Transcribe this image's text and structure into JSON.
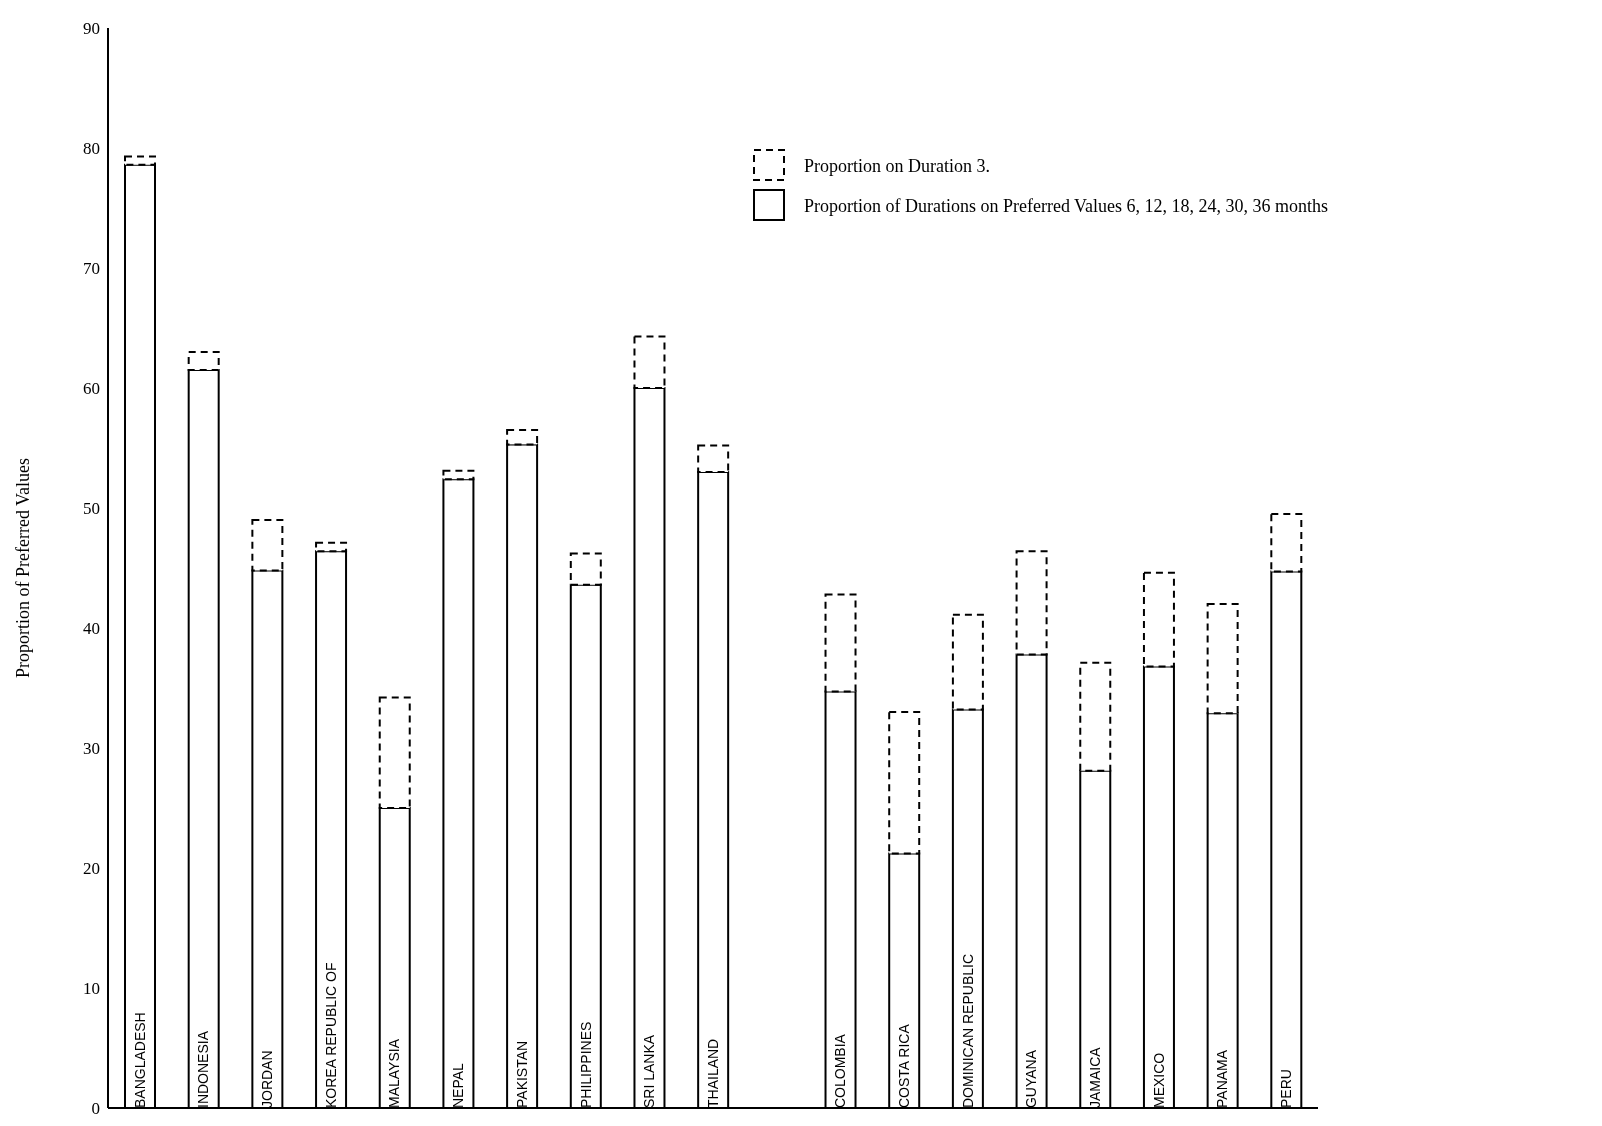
{
  "chart_data": {
    "type": "bar",
    "stacked": true,
    "ylabel": "Proportion of Preferred Values",
    "categories": [
      "BANGLADESH",
      "INDONESIA",
      "JORDAN",
      "KOREA REPUBLIC OF",
      "MALAYSIA",
      "NEPAL",
      "PAKISTAN",
      "PHILIPPINES",
      "SRI LANKA",
      "THAILAND",
      null,
      "COLOMBIA",
      "COSTA RICA",
      "DOMINICAN REPUBLIC",
      "GUYANA",
      "JAMAICA",
      "MEXICO",
      "PANAMA",
      "PERU"
    ],
    "series": [
      {
        "name": "Proportion of Durations on Preferred Values 6, 12, 18, 24, 30, 36 months",
        "color": "#000000",
        "line_style": "solid",
        "values": [
          78.6,
          61.5,
          44.8,
          46.4,
          25,
          52.4,
          55.3,
          43.6,
          60,
          53,
          null,
          34.7,
          21.2,
          33.2,
          37.8,
          28.1,
          36.8,
          32.9,
          44.7
        ]
      },
      {
        "name": "Proportion on Duration 3.",
        "color": "#000000",
        "line_style": "dashed",
        "values": [
          0.7,
          1.5,
          4.2,
          0.7,
          9.2,
          0.7,
          1.2,
          2.6,
          4.3,
          2.2,
          null,
          8.1,
          11.8,
          7.9,
          8.6,
          9,
          7.8,
          9.1,
          4.8
        ]
      }
    ],
    "ylim": [
      0,
      90
    ],
    "yticks": [
      0,
      10,
      20,
      30,
      40,
      50,
      60,
      70,
      80,
      90
    ],
    "grid": false,
    "legend": "top right"
  }
}
